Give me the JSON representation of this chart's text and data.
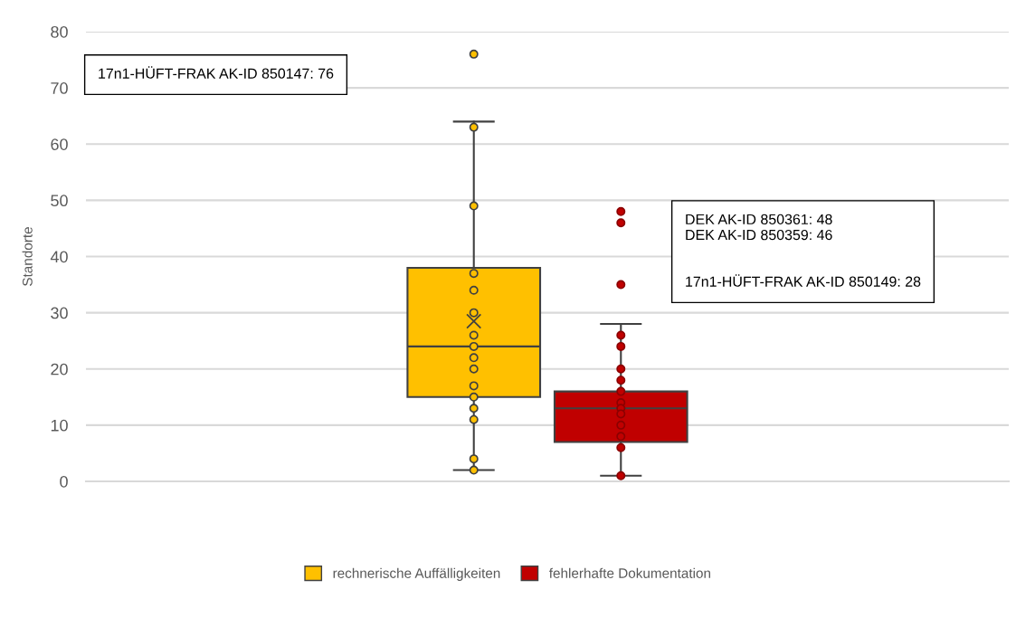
{
  "chart_data": {
    "type": "box",
    "categories": [
      null
    ],
    "ylabel": "Standorte",
    "ylim": [
      0,
      80
    ],
    "yticks": [
      0,
      10,
      20,
      30,
      40,
      50,
      60,
      70,
      80
    ],
    "grid": "y",
    "legend": "bottom",
    "marker": "circle",
    "series": [
      {
        "name": "rechnerische Auffälligkeiten",
        "color": "#ffc000",
        "boxes": [
          {
            "low": 2,
            "q1": 15,
            "median": 24,
            "q3": 38,
            "high": 64,
            "mean": 28.5,
            "outliers": [
              76,
              63,
              49,
              37,
              34,
              30,
              26,
              24,
              22,
              20,
              17,
              15,
              13,
              11,
              4,
              2
            ]
          }
        ]
      },
      {
        "name": "fehlerhafte Dokumentation",
        "color": "#c00000",
        "boxes": [
          {
            "low": 1,
            "q1": 7,
            "median": 13,
            "q3": 16,
            "high": 28,
            "outliers": [
              48,
              46,
              35,
              26,
              24,
              20,
              18,
              16,
              14,
              13,
              12,
              10,
              8,
              6,
              1
            ]
          }
        ]
      }
    ],
    "annotations": [
      "17n1-HÜFT-FRAK AK-ID 850147: 76",
      "DEK AK-ID 850361: 48\nDEK AK-ID 850359: 46\n\n\n17n1-HÜFT-FRAK AK-ID 850149: 28"
    ]
  }
}
